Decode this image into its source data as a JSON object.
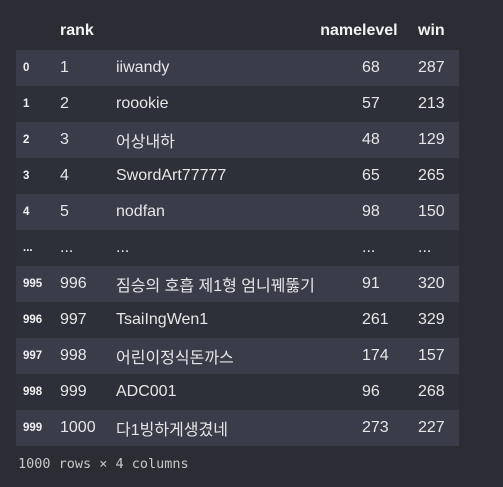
{
  "table": {
    "columns": {
      "index": "",
      "rank": "rank",
      "name": "name",
      "level": "level",
      "win": "win"
    },
    "rows": [
      {
        "index": "0",
        "rank": "1",
        "name": "iiwandy",
        "level": "68",
        "win": "287"
      },
      {
        "index": "1",
        "rank": "2",
        "name": "roookie",
        "level": "57",
        "win": "213"
      },
      {
        "index": "2",
        "rank": "3",
        "name": "어상내하",
        "level": "48",
        "win": "129"
      },
      {
        "index": "3",
        "rank": "4",
        "name": "SwordArt77777",
        "level": "65",
        "win": "265"
      },
      {
        "index": "4",
        "rank": "5",
        "name": "nodfan",
        "level": "98",
        "win": "150"
      },
      {
        "index": "...",
        "rank": "...",
        "name": "...",
        "level": "...",
        "win": "..."
      },
      {
        "index": "995",
        "rank": "996",
        "name": "짐승의 호흡 제1형 엄니꿰뚫기",
        "level": "91",
        "win": "320"
      },
      {
        "index": "996",
        "rank": "997",
        "name": "TsaiIngWen1",
        "level": "261",
        "win": "329"
      },
      {
        "index": "997",
        "rank": "998",
        "name": "어린이정식돈까스",
        "level": "174",
        "win": "157"
      },
      {
        "index": "998",
        "rank": "999",
        "name": "ADC001",
        "level": "96",
        "win": "268"
      },
      {
        "index": "999",
        "rank": "1000",
        "name": "다1빙하게생겼네",
        "level": "273",
        "win": "227"
      }
    ]
  },
  "footer": {
    "shape_text": "1000 rows × 4 columns"
  }
}
